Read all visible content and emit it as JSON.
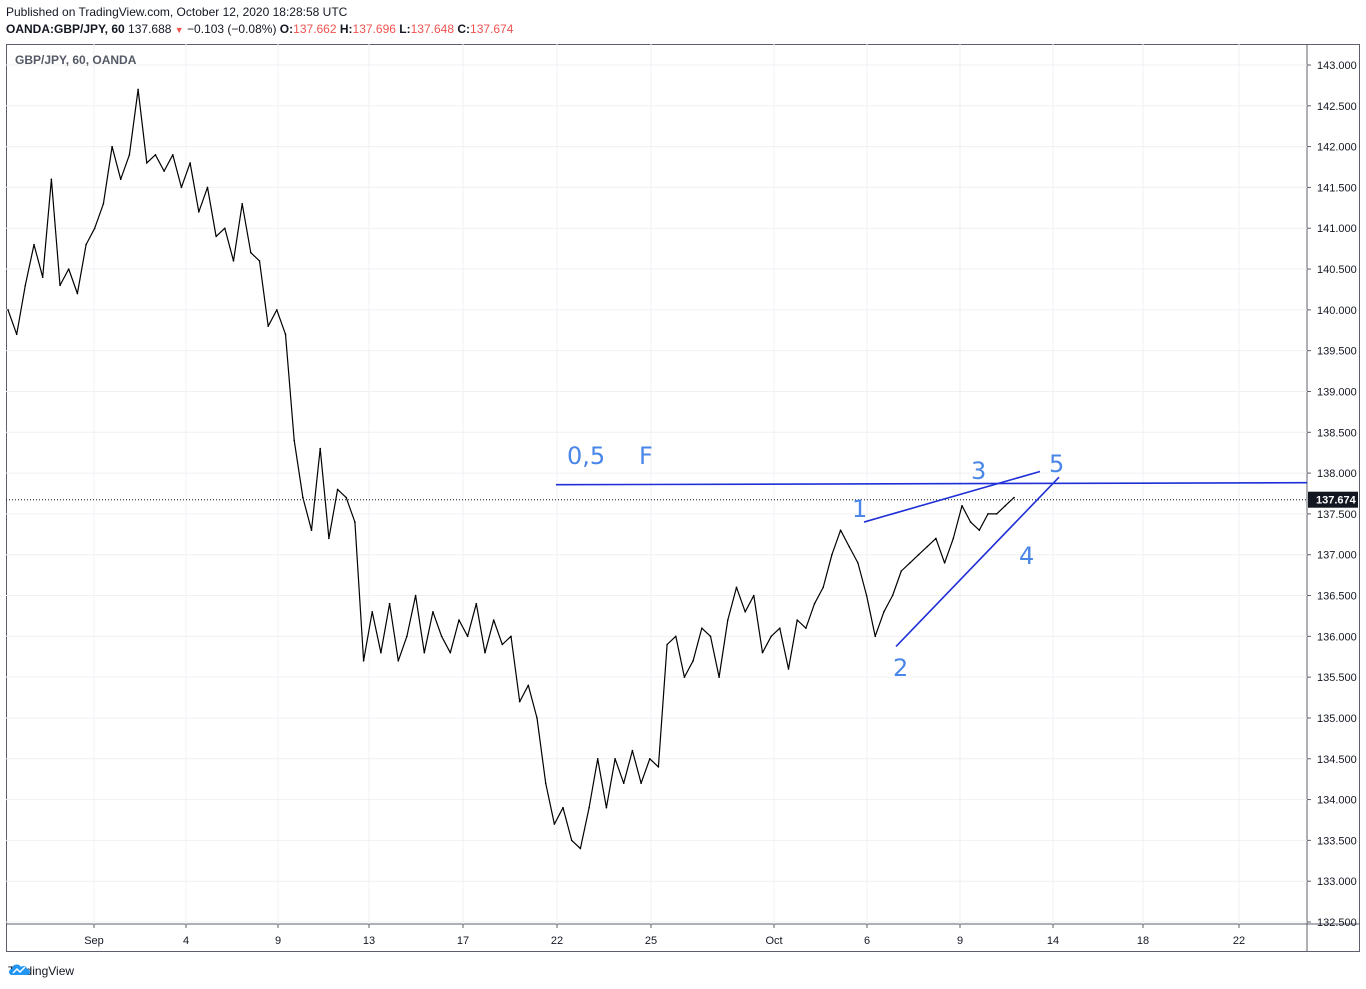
{
  "header": {
    "published": "Published on TradingView.com, October 12, 2020 18:28:58 UTC",
    "symbol": "OANDA:GBP/JPY, 60",
    "last": "137.688",
    "change": "−0.103 (−0.08%)",
    "o_label": "O:",
    "o_value": "137.662",
    "h_label": "H:",
    "h_value": "137.696",
    "l_label": "L:",
    "l_value": "137.648",
    "c_label": "C:",
    "c_value": "137.674"
  },
  "chart_data": {
    "type": "line",
    "title": "GBP/JPY, 60, OANDA",
    "xlabel": "",
    "ylabel": "",
    "x_ticks": [
      "Sep",
      "4",
      "9",
      "13",
      "17",
      "22",
      "25",
      "Oct",
      "6",
      "9",
      "14",
      "18",
      "22"
    ],
    "y_ticks": [
      "132.500",
      "133.000",
      "133.500",
      "134.000",
      "134.500",
      "135.000",
      "135.500",
      "136.000",
      "136.500",
      "137.000",
      "137.500",
      "138.000",
      "138.500",
      "139.000",
      "139.500",
      "140.000",
      "140.500",
      "141.000",
      "141.500",
      "142.000",
      "142.500",
      "143.000"
    ],
    "ylim": [
      132.5,
      143.0
    ],
    "last_price": 137.674,
    "last_price_label": "137.674",
    "series": [
      {
        "values": [
          140.0,
          139.7,
          140.3,
          140.8,
          140.4,
          141.6,
          140.3,
          140.5,
          140.2,
          140.8,
          141.0,
          141.3,
          142.0,
          141.6,
          141.9,
          142.7,
          141.8,
          141.9,
          141.7,
          141.9,
          141.5,
          141.8,
          141.2,
          141.5,
          140.9,
          141.0,
          140.6,
          141.3,
          140.7,
          140.6,
          139.8,
          140.0,
          139.7,
          138.4,
          137.7,
          137.3,
          138.3,
          137.2,
          137.8,
          137.7,
          137.4,
          135.7,
          136.3,
          135.8,
          136.4,
          135.7,
          136.0,
          136.5,
          135.8,
          136.3,
          136.0,
          135.8,
          136.2,
          136.0,
          136.4,
          135.8,
          136.2,
          135.9,
          136.0,
          135.2,
          135.4,
          135.0,
          134.2,
          133.7,
          133.9,
          133.5,
          133.4,
          133.9,
          134.5,
          133.9,
          134.5,
          134.2,
          134.6,
          134.2,
          134.5,
          134.4,
          135.9,
          136.0,
          135.5,
          135.7,
          136.1,
          136.0,
          135.5,
          136.2,
          136.6,
          136.3,
          136.5,
          135.8,
          136.0,
          136.1,
          135.6,
          136.2,
          136.1,
          136.4,
          136.6,
          137.0,
          137.3,
          137.1,
          136.9,
          136.5,
          136.0,
          136.3,
          136.5,
          136.8,
          136.9,
          137.0,
          137.1,
          137.2,
          136.9,
          137.2,
          137.6,
          137.4,
          137.3,
          137.5,
          137.5,
          137.6,
          137.7
        ]
      }
    ],
    "annotations": {
      "hline_level": 137.87,
      "hline_label_1": "0,5",
      "hline_label_2": "F",
      "wave_1": "1",
      "wave_2": "2",
      "wave_3": "3",
      "wave_4": "4",
      "wave_5": "5",
      "wave_1_price": 137.4,
      "wave_2_price": 135.9,
      "wave_3_price": 137.85,
      "wave_4_price": 137.2,
      "wave_5_price": 138.02
    }
  },
  "footer": {
    "brand": "TradingView",
    "logo_icon": "tradingview-cloud-icon"
  }
}
